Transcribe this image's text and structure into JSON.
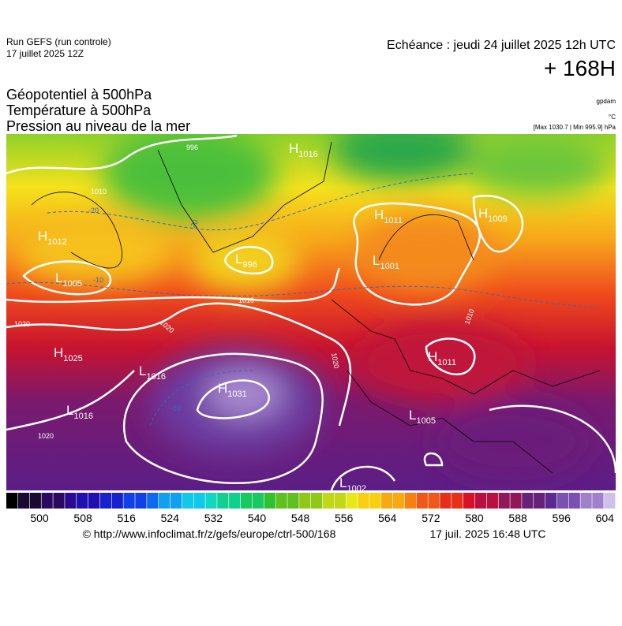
{
  "header": {
    "run": "Run GEFS (run controle)",
    "run_date": "17 juillet 2025 12Z",
    "echeance": "Echéance : jeudi 24 juillet 2025 12h UTC",
    "lead": "+ 168H",
    "fields": [
      "Géopotentiel à 500hPa",
      "Température à 500hPa",
      "Pression au niveau de la mer"
    ],
    "unit_geo": "gpdam",
    "unit_temp": "°C",
    "extremes": "[Max 1030.7 | Min 995.9] hPa"
  },
  "pressure_centers": [
    {
      "letter": "H",
      "value": "1016"
    },
    {
      "letter": "H",
      "value": "1011"
    },
    {
      "letter": "H",
      "value": "1009"
    },
    {
      "letter": "H",
      "value": "1012"
    },
    {
      "letter": "L",
      "value": "996"
    },
    {
      "letter": "L",
      "value": "1005"
    },
    {
      "letter": "L",
      "value": "1001"
    },
    {
      "letter": "H",
      "value": "1025"
    },
    {
      "letter": "L",
      "value": "1016"
    },
    {
      "letter": "H",
      "value": "1031"
    },
    {
      "letter": "L",
      "value": "1016"
    },
    {
      "letter": "H",
      "value": "1011"
    },
    {
      "letter": "L",
      "value": "1005"
    },
    {
      "letter": "L",
      "value": "1002"
    }
  ],
  "isobar_labels": [
    "1010",
    "1010",
    "1020",
    "1020",
    "1020",
    "1020",
    "1010",
    "996",
    "-20",
    "-20",
    "-10",
    "-10"
  ],
  "colorbar": {
    "ticks": [
      "500",
      "508",
      "516",
      "524",
      "532",
      "540",
      "548",
      "556",
      "564",
      "572",
      "580",
      "588",
      "596",
      "604"
    ]
  },
  "footer": {
    "source": "© http://www.infoclimat.fr/z/gefs/europe/ctrl-500/168",
    "generated": "17 juil. 2025 16:48 UTC"
  }
}
